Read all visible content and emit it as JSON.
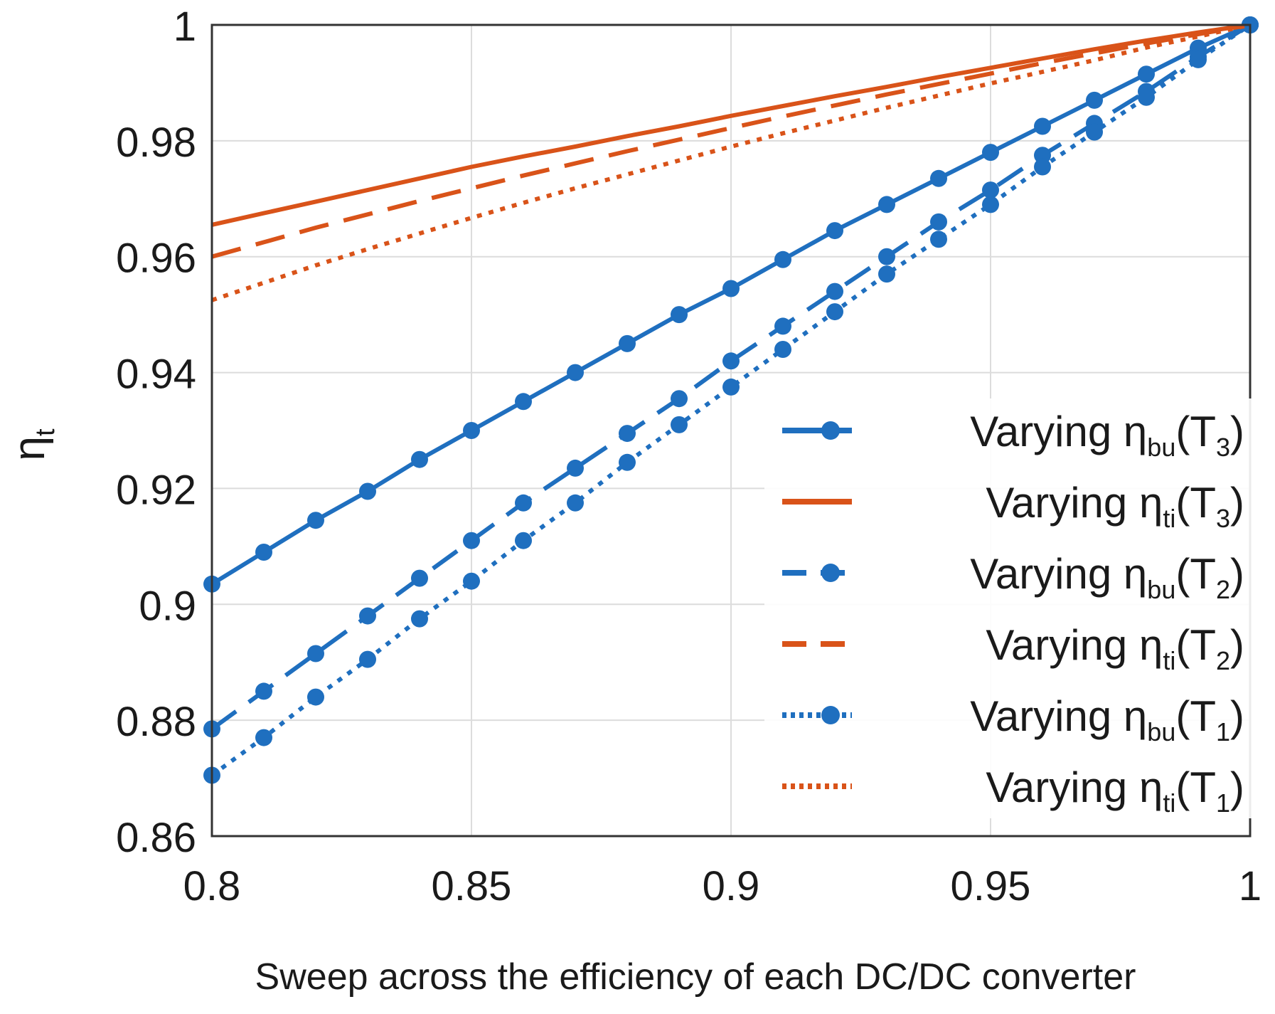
{
  "chart_data": {
    "type": "line",
    "xlabel": "Sweep across the efficiency of each DC/DC converter",
    "ylabel": "η",
    "ylabel_sub": "t",
    "xlim": [
      0.8,
      1.0
    ],
    "ylim": [
      0.86,
      1.0
    ],
    "x_ticks": [
      0.8,
      0.85,
      0.9,
      0.95,
      1.0
    ],
    "x_tick_labels": [
      "0.8",
      "0.85",
      "0.9",
      "0.95",
      "1"
    ],
    "y_ticks": [
      0.86,
      0.88,
      0.9,
      0.92,
      0.94,
      0.96,
      0.98,
      1.0
    ],
    "y_tick_labels": [
      "0.86",
      "0.88",
      "0.9",
      "0.92",
      "0.94",
      "0.96",
      "0.98",
      "1"
    ],
    "grid": true,
    "legend_position": "right",
    "x": [
      0.8,
      0.81,
      0.82,
      0.83,
      0.84,
      0.85,
      0.86,
      0.87,
      0.88,
      0.89,
      0.9,
      0.91,
      0.92,
      0.93,
      0.94,
      0.95,
      0.96,
      0.97,
      0.98,
      0.99,
      1.0
    ],
    "series": [
      {
        "name": "Varying η",
        "name_sub": "bu",
        "name_paren": "(T",
        "name_paren_sub": "3",
        "name_close": ")",
        "color": "#1f6fbf",
        "dash": "solid",
        "markers": true,
        "values": [
          0.9035,
          0.909,
          0.9145,
          0.9195,
          0.925,
          0.93,
          0.935,
          0.94,
          0.945,
          0.95,
          0.9545,
          0.9595,
          0.9645,
          0.969,
          0.9735,
          0.978,
          0.9825,
          0.987,
          0.9915,
          0.996,
          1.0
        ]
      },
      {
        "name": "Varying η",
        "name_sub": "ti",
        "name_paren": "(T",
        "name_paren_sub": "3",
        "name_close": ")",
        "color": "#d95319",
        "dash": "solid",
        "markers": false,
        "values": [
          0.9655,
          0.9675,
          0.9695,
          0.9715,
          0.9735,
          0.9755,
          0.9773,
          0.979,
          0.9808,
          0.9825,
          0.9843,
          0.986,
          0.9877,
          0.9893,
          0.991,
          0.9926,
          0.9942,
          0.9958,
          0.9973,
          0.9987,
          1.0
        ]
      },
      {
        "name": "Varying η",
        "name_sub": "bu",
        "name_paren": "(T",
        "name_paren_sub": "2",
        "name_close": ")",
        "color": "#1f6fbf",
        "dash": "dashed",
        "markers": true,
        "values": [
          0.8785,
          0.885,
          0.8915,
          0.898,
          0.9045,
          0.911,
          0.9175,
          0.9235,
          0.9295,
          0.9355,
          0.942,
          0.948,
          0.954,
          0.96,
          0.966,
          0.9715,
          0.9775,
          0.983,
          0.9885,
          0.9945,
          1.0
        ]
      },
      {
        "name": "Varying η",
        "name_sub": "ti",
        "name_paren": "(T",
        "name_paren_sub": "2",
        "name_close": ")",
        "color": "#d95319",
        "dash": "dashed",
        "markers": false,
        "values": [
          0.96,
          0.9625,
          0.965,
          0.9673,
          0.9696,
          0.9718,
          0.974,
          0.9761,
          0.9782,
          0.9802,
          0.9822,
          0.9842,
          0.9861,
          0.988,
          0.9898,
          0.9916,
          0.9934,
          0.9951,
          0.9968,
          0.9984,
          1.0
        ]
      },
      {
        "name": "Varying η",
        "name_sub": "bu",
        "name_paren": "(T",
        "name_paren_sub": "1",
        "name_close": ")",
        "color": "#1f6fbf",
        "dash": "dotted",
        "markers": true,
        "values": [
          0.8705,
          0.877,
          0.884,
          0.8905,
          0.8975,
          0.904,
          0.911,
          0.9175,
          0.9245,
          0.931,
          0.9375,
          0.944,
          0.9505,
          0.957,
          0.963,
          0.969,
          0.9755,
          0.9815,
          0.9875,
          0.994,
          1.0
        ]
      },
      {
        "name": "Varying η",
        "name_sub": "ti",
        "name_paren": "(T",
        "name_paren_sub": "1",
        "name_close": ")",
        "color": "#d95319",
        "dash": "dotted",
        "markers": false,
        "values": [
          0.9525,
          0.9555,
          0.9585,
          0.9613,
          0.964,
          0.9667,
          0.9693,
          0.9718,
          0.9742,
          0.9766,
          0.979,
          0.9813,
          0.9835,
          0.9857,
          0.9878,
          0.9899,
          0.9919,
          0.9939,
          0.9961,
          0.998,
          1.0
        ]
      }
    ]
  }
}
